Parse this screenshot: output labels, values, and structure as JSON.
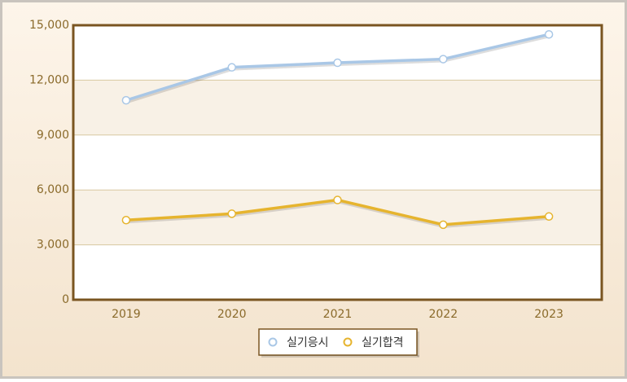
{
  "chart_data": {
    "type": "line",
    "categories": [
      "2019",
      "2020",
      "2021",
      "2022",
      "2023"
    ],
    "series": [
      {
        "name": "실기응시",
        "color": "#a9c7e6",
        "values": [
          10900,
          12700,
          12950,
          13150,
          14500
        ]
      },
      {
        "name": "실기합격",
        "color": "#e6b42e",
        "values": [
          4350,
          4700,
          5450,
          4100,
          4550
        ]
      }
    ],
    "ylim": [
      0,
      15000
    ],
    "yticks": [
      0,
      {
        "value": 3000,
        "label": "3,000"
      },
      {
        "value": 6000,
        "label": "6,000"
      },
      {
        "value": 9000,
        "label": "9,000"
      },
      {
        "value": 12000,
        "label": "12,000"
      },
      {
        "value": 15000,
        "label": "15,000"
      }
    ],
    "grid": true,
    "legend": "bottom"
  }
}
